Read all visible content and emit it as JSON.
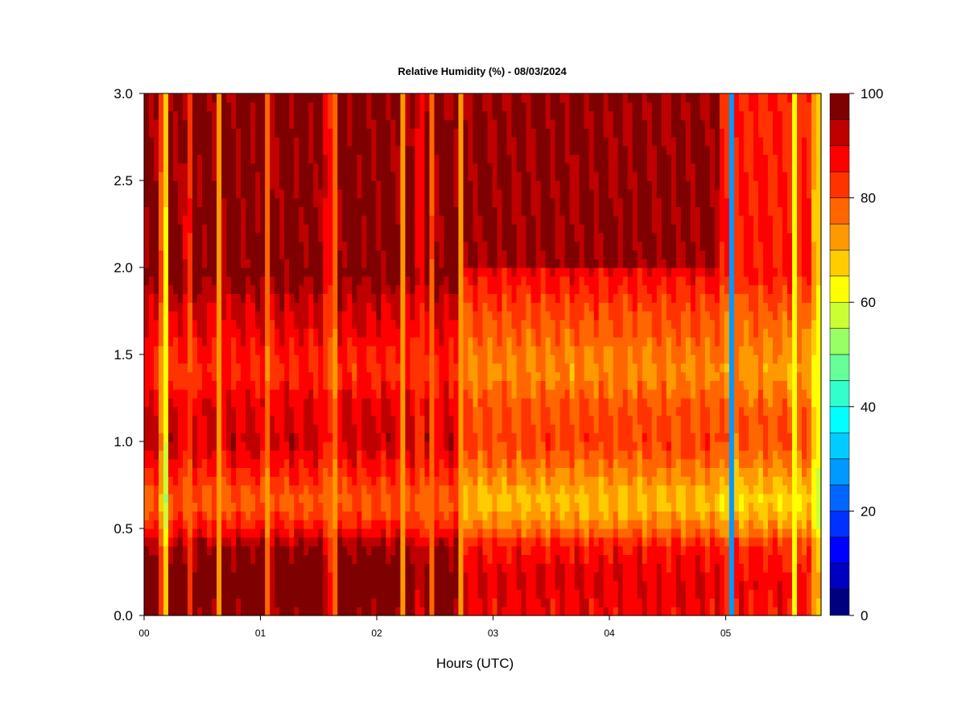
{
  "chart_data": {
    "type": "heatmap",
    "title": "Relative Humidity (%) - 08/03/2024",
    "xlabel": "Hours (UTC)",
    "ylabel": "",
    "x_tick_labels": [
      "00",
      "01",
      "02",
      "03",
      "04",
      "05"
    ],
    "x_ticks_hours": [
      0,
      1,
      2,
      3,
      4,
      5
    ],
    "xlim_hours": [
      0,
      5.82
    ],
    "y_tick_labels": [
      "0.0",
      "0.5",
      "1.0",
      "1.5",
      "2.0",
      "2.5",
      "3.0"
    ],
    "y_ticks": [
      0,
      0.5,
      1.0,
      1.5,
      2.0,
      2.5,
      3.0
    ],
    "ylim": [
      0,
      3.0
    ],
    "colorbar": {
      "range": [
        0,
        100
      ],
      "step": 5,
      "tick_labels": [
        "0",
        "20",
        "40",
        "60",
        "80",
        "100"
      ],
      "tick_values": [
        0,
        20,
        40,
        60,
        80,
        100
      ],
      "colors": [
        "#00007f",
        "#0000bf",
        "#0000ff",
        "#0032ff",
        "#0066ff",
        "#0099ff",
        "#00ccff",
        "#00ffff",
        "#33ffcc",
        "#66ff99",
        "#99ff66",
        "#ccff33",
        "#ffff00",
        "#ffcc00",
        "#ff9900",
        "#ff6600",
        "#ff3300",
        "#ff0000",
        "#bf0000",
        "#7f0000"
      ]
    },
    "profiles": [
      {
        "height": 0.0,
        "rh": 92
      },
      {
        "height": 0.2,
        "rh": 94
      },
      {
        "height": 0.4,
        "rh": 90
      },
      {
        "height": 0.5,
        "rh": 80
      },
      {
        "height": 0.65,
        "rh": 72
      },
      {
        "height": 0.8,
        "rh": 78
      },
      {
        "height": 1.0,
        "rh": 86
      },
      {
        "height": 1.2,
        "rh": 84
      },
      {
        "height": 1.4,
        "rh": 78
      },
      {
        "height": 1.6,
        "rh": 82
      },
      {
        "height": 1.8,
        "rh": 86
      },
      {
        "height": 2.0,
        "rh": 93
      },
      {
        "height": 2.5,
        "rh": 97
      },
      {
        "height": 3.0,
        "rh": 96
      }
    ],
    "time_segments": [
      {
        "start": 0.0,
        "end": 2.75,
        "base_shift": 6,
        "note_rh_upper": 97
      },
      {
        "start": 2.75,
        "end": 4.95,
        "base_shift": -4,
        "note_rh_upper": 96
      },
      {
        "start": 4.95,
        "end": 5.82,
        "base_shift": -6,
        "note_rh_upper": 85
      }
    ],
    "low_streaks": [
      {
        "hour": 0.17,
        "min_rh": 35
      },
      {
        "hour": 0.38,
        "min_rh": 75
      },
      {
        "hour": 0.65,
        "min_rh": 70
      },
      {
        "hour": 1.07,
        "min_rh": 72
      },
      {
        "hour": 1.58,
        "min_rh": 75
      },
      {
        "hour": 1.63,
        "min_rh": 70
      },
      {
        "hour": 2.22,
        "min_rh": 72
      },
      {
        "hour": 2.37,
        "min_rh": 76
      },
      {
        "hour": 2.48,
        "min_rh": 78
      },
      {
        "hour": 2.72,
        "min_rh": 74
      },
      {
        "hour": 5.05,
        "min_rh": 25
      },
      {
        "hour": 5.6,
        "min_rh": 60
      },
      {
        "hour": 5.78,
        "min_rh": 45
      }
    ]
  }
}
